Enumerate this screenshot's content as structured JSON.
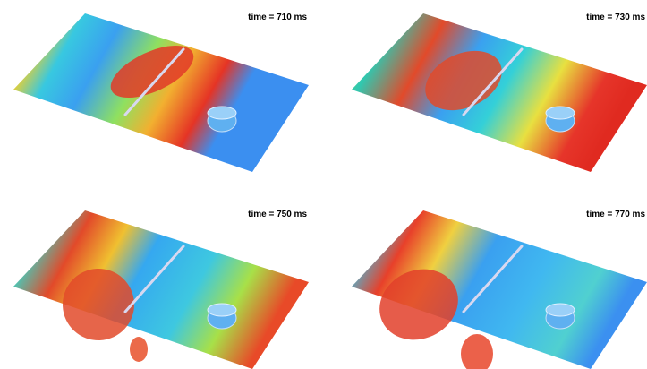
{
  "panels": [
    {
      "label": "time = 710 ms"
    },
    {
      "label": "time = 730 ms"
    },
    {
      "label": "time = 750 ms"
    },
    {
      "label": "time = 770 ms"
    }
  ]
}
